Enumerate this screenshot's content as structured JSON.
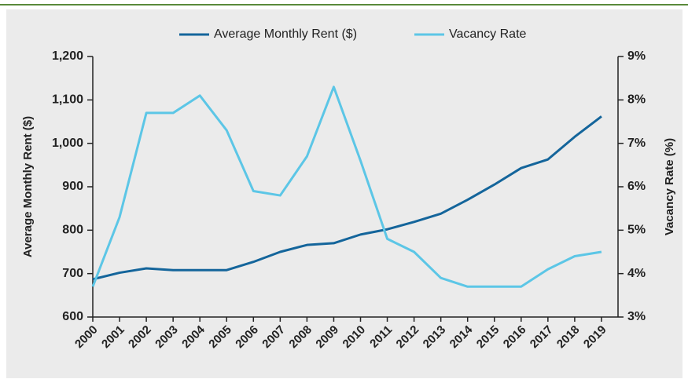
{
  "chart_data": {
    "type": "line",
    "categories": [
      "2000",
      "2001",
      "2002",
      "2003",
      "2004",
      "2005",
      "2006",
      "2007",
      "2008",
      "2009",
      "2010",
      "2011",
      "2012",
      "2013",
      "2014",
      "2015",
      "2016",
      "2017",
      "2018",
      "2019"
    ],
    "series": [
      {
        "name": "Average Monthly Rent ($)",
        "color": "#14659b",
        "axis": "y",
        "values": [
          687,
          702,
          712,
          708,
          708,
          708,
          727,
          750,
          766,
          770,
          790,
          802,
          819,
          838,
          870,
          905,
          943,
          963,
          1015,
          1062
        ]
      },
      {
        "name": "Vacancy Rate",
        "color": "#5cc6e6",
        "axis": "y2",
        "values": [
          3.7,
          5.3,
          7.7,
          7.7,
          8.1,
          7.3,
          5.9,
          5.8,
          6.7,
          8.3,
          6.6,
          4.8,
          4.5,
          3.9,
          3.7,
          3.7,
          3.7,
          4.1,
          4.4,
          4.5
        ]
      }
    ],
    "ylabel": "Average Monthly Rent ($)",
    "y2label": "Vacancy Rate (%)",
    "ylim": [
      600,
      1200
    ],
    "yticks": [
      600,
      700,
      800,
      900,
      {
        "value": 1000,
        "label": "1,000"
      },
      {
        "value": 1100,
        "label": "1,100"
      },
      {
        "value": 1200,
        "label": "1,200"
      }
    ],
    "y2lim": [
      3,
      9
    ],
    "y2ticks": [
      {
        "value": 3,
        "label": "3%"
      },
      {
        "value": 4,
        "label": "4%"
      },
      {
        "value": 5,
        "label": "5%"
      },
      {
        "value": 6,
        "label": "6%"
      },
      {
        "value": 7,
        "label": "7%"
      },
      {
        "value": 8,
        "label": "8%"
      },
      {
        "value": 9,
        "label": "9%"
      }
    ],
    "legend": "top"
  }
}
